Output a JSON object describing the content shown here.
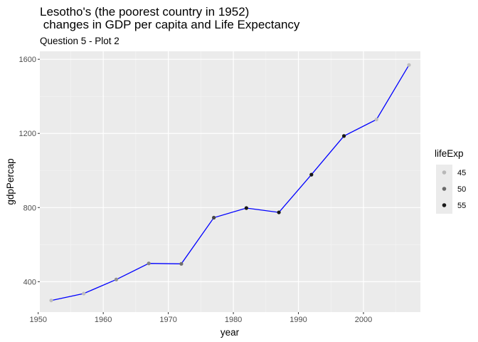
{
  "chart_data": {
    "type": "scatter",
    "title_line1": "Lesotho's (the poorest country in 1952)",
    "title_line2": " changes in GDP per capita and Life Expectancy",
    "subtitle": "Question 5 - Plot 2",
    "xlabel": "year",
    "ylabel": "gdpPercap",
    "xlim": [
      1950.25,
      2008.75
    ],
    "ylim": [
      236,
      1643
    ],
    "x_ticks": [
      1950,
      1960,
      1970,
      1980,
      1990,
      2000
    ],
    "y_ticks": [
      400,
      800,
      1200,
      1600
    ],
    "line_color": "#0000ff",
    "panel_background": "#ebebeb",
    "grid": true,
    "legend": {
      "title": "lifeExp",
      "position": "right",
      "entries": [
        {
          "label": "45",
          "value": 45,
          "color": "#b8b8b8"
        },
        {
          "label": "50",
          "value": 50,
          "color": "#6a6a6a"
        },
        {
          "label": "55",
          "value": 55,
          "color": "#1a1a1a"
        }
      ]
    },
    "x": [
      1952,
      1957,
      1962,
      1967,
      1972,
      1977,
      1982,
      1987,
      1992,
      1997,
      2002,
      2007
    ],
    "gdpPercap": [
      298.8,
      335.9,
      411.8,
      498.6,
      496.2,
      745.4,
      797.3,
      773.99,
      977.5,
      1186.1,
      1275.2,
      1569.3
    ],
    "lifeExp": [
      42.1,
      45.0,
      47.7,
      48.5,
      49.8,
      52.2,
      55.1,
      57.2,
      59.7,
      55.6,
      44.6,
      42.6
    ]
  }
}
